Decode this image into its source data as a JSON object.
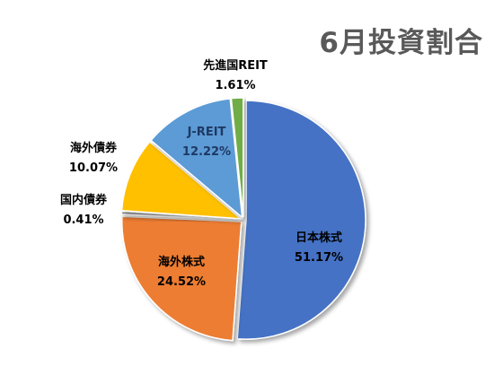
{
  "chart_data": {
    "type": "pie",
    "title": "6月投資割合",
    "slices": [
      {
        "name": "日本株式",
        "value_label": "51.17%",
        "value": 51.17,
        "color": "#4472C4",
        "label_color": "#000000"
      },
      {
        "name": "海外株式",
        "value_label": "24.52%",
        "value": 24.52,
        "color": "#ED7D31",
        "label_color": "#000000"
      },
      {
        "name": "国内債券",
        "value_label": "0.41%",
        "value": 0.41,
        "color": "#A5A5A5",
        "label_color": "#000000"
      },
      {
        "name": "海外債券",
        "value_label": "10.07%",
        "value": 10.07,
        "color": "#FFC000",
        "label_color": "#000000"
      },
      {
        "name": "J-REIT",
        "value_label": "12.22%",
        "value": 12.22,
        "color": "#5B9BD5",
        "label_color": "#1F3864"
      },
      {
        "name": "先進国REIT",
        "value_label": "1.61%",
        "value": 1.61,
        "color": "#70AD47",
        "label_color": "#000000"
      }
    ],
    "legend": "none"
  }
}
